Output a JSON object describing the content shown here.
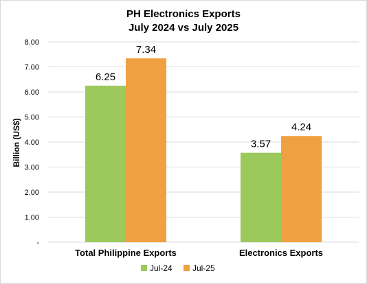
{
  "chart_data": {
    "type": "bar",
    "title": "PH Electronics Exports",
    "subtitle": "July 2024 vs July 2025",
    "ylabel": "Billion (US$)",
    "xlabel": "",
    "ylim": [
      0,
      8
    ],
    "yticks": [
      0,
      1,
      2,
      3,
      4,
      5,
      6,
      7,
      8
    ],
    "ytick_labels": [
      "-",
      "1.00",
      "2.00",
      "3.00",
      "4.00",
      "5.00",
      "6.00",
      "7.00",
      "8.00"
    ],
    "categories": [
      "Total Philippine Exports",
      "Electronics Exports"
    ],
    "series": [
      {
        "name": "Jul-24",
        "color": "#9bc95c",
        "values": [
          6.25,
          3.57
        ],
        "labels": [
          "6.25",
          "3.57"
        ]
      },
      {
        "name": "Jul-25",
        "color": "#f0a040",
        "values": [
          7.34,
          4.24
        ],
        "labels": [
          "7.34",
          "4.24"
        ]
      }
    ],
    "grid": true,
    "legend_position": "bottom"
  }
}
